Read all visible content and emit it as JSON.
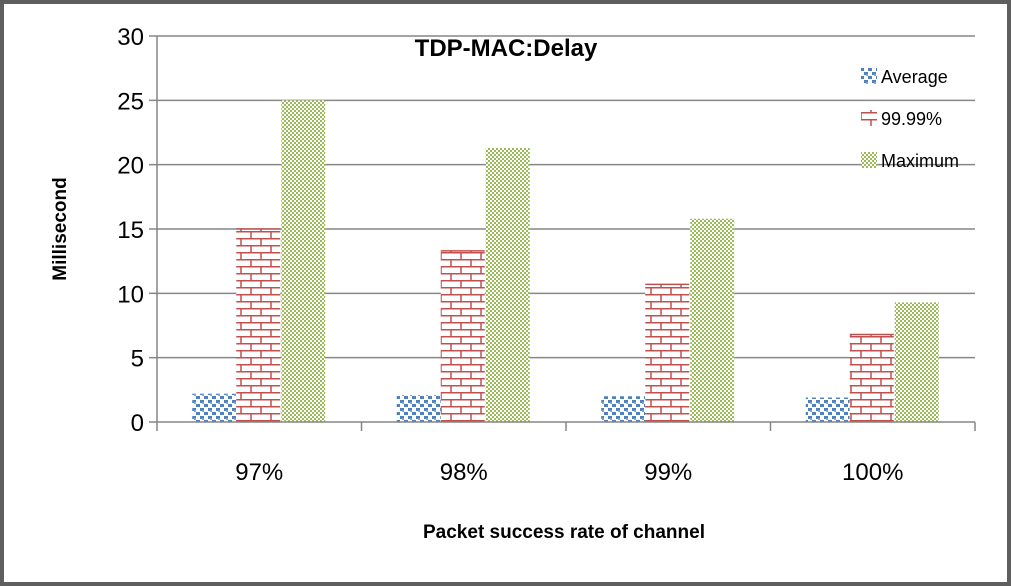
{
  "chart_data": {
    "type": "bar",
    "title": "TDP-MAC:Delay",
    "xlabel": "Packet success rate of channel",
    "ylabel": "Millisecond",
    "categories": [
      "97%",
      "98%",
      "99%",
      "100%"
    ],
    "ylim": [
      0,
      30
    ],
    "yticks": [
      0,
      5,
      10,
      15,
      20,
      25,
      30
    ],
    "grid": true,
    "legend_position": "top-right",
    "series": [
      {
        "name": "Average",
        "values": [
          2.2,
          2.1,
          2.0,
          1.9
        ],
        "color": "#4f81bd",
        "pattern": "dots"
      },
      {
        "name": "99.99%",
        "values": [
          15.0,
          13.3,
          10.7,
          6.8
        ],
        "color": "#c0504d",
        "pattern": "brick"
      },
      {
        "name": "Maximum",
        "values": [
          25.0,
          21.3,
          15.8,
          9.3
        ],
        "color": "#9bbb59",
        "pattern": "checker"
      }
    ]
  }
}
